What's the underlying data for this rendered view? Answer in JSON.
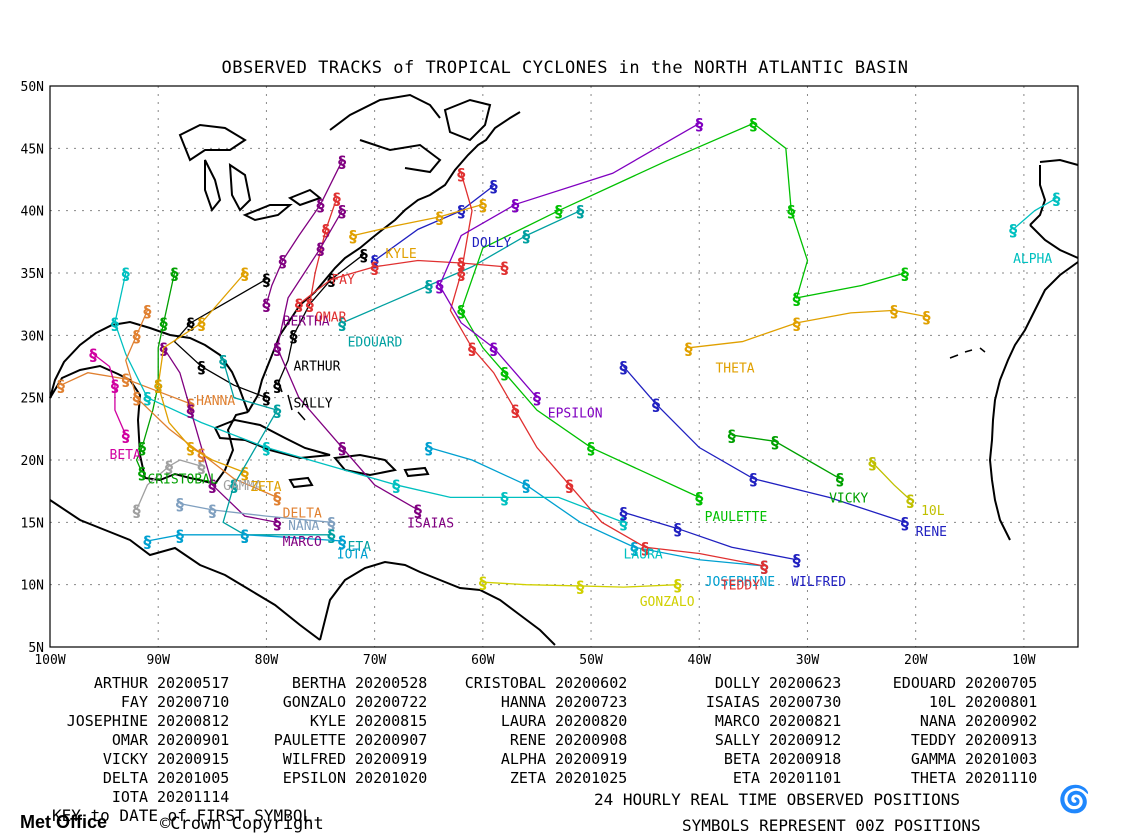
{
  "title": "OBSERVED TRACKS of TROPICAL CYCLONES in the NORTH ATLANTIC BASIN",
  "lat_labels": [
    "50N",
    "45N",
    "40N",
    "35N",
    "30N",
    "25N",
    "20N",
    "15N",
    "10N",
    "5N"
  ],
  "lon_labels": [
    "100W",
    "90W",
    "80W",
    "70W",
    "60W",
    "50W",
    "40W",
    "30W",
    "20W",
    "10W"
  ],
  "map_extent": {
    "lon_min": -100,
    "lon_max": -5,
    "lat_min": 5,
    "lat_max": 50
  },
  "storms": [
    {
      "name": "ARTHUR",
      "date": "20200517",
      "color": "#000000",
      "label": [
        -77.5,
        27.6
      ],
      "track": [
        [
          -79,
          26
        ],
        [
          -78,
          28
        ],
        [
          -77.5,
          30
        ],
        [
          -76,
          32.5
        ],
        [
          -74,
          34.5
        ],
        [
          -71,
          36.5
        ]
      ]
    },
    {
      "name": "BERTHA",
      "date": "20200528",
      "color": "#800080",
      "label": [
        -78.5,
        31.2
      ],
      "track": [
        [
          -80,
          32.5
        ],
        [
          -79.5,
          34
        ],
        [
          -78.5,
          36
        ],
        [
          -77,
          38
        ],
        [
          -75,
          40.5
        ],
        [
          -73,
          44
        ]
      ]
    },
    {
      "name": "CRISTOBAL",
      "date": "20200602",
      "color": "#00a000",
      "label": [
        -91,
        18.5
      ],
      "track": [
        [
          -91.5,
          19
        ],
        [
          -92,
          20
        ],
        [
          -91.5,
          21
        ],
        [
          -90.5,
          24
        ],
        [
          -90,
          26
        ],
        [
          -90,
          29
        ],
        [
          -89.5,
          31
        ],
        [
          -88.5,
          35
        ]
      ]
    },
    {
      "name": "DOLLY",
      "date": "20200623",
      "color": "#2020c0",
      "label": [
        -61,
        37.5
      ],
      "track": [
        [
          -70,
          36
        ],
        [
          -66,
          38.5
        ],
        [
          -62,
          40
        ],
        [
          -59,
          42
        ]
      ]
    },
    {
      "name": "EDOUARD",
      "date": "20200705",
      "color": "#00a0a0",
      "label": [
        -72.5,
        29.5
      ],
      "track": [
        [
          -73,
          31
        ],
        [
          -69,
          32.5
        ],
        [
          -65,
          34
        ],
        [
          -61,
          35.5
        ],
        [
          -56,
          38
        ],
        [
          -51,
          40
        ]
      ]
    },
    {
      "name": "FAY",
      "date": "20200710",
      "color": "#e03030",
      "label": [
        -74,
        34.5
      ],
      "track": [
        [
          -76,
          32.5
        ],
        [
          -75.5,
          35
        ],
        [
          -74.5,
          38.5
        ],
        [
          -73.5,
          41
        ]
      ]
    },
    {
      "name": "GONZALO",
      "date": "20200722",
      "color": "#d0d000",
      "label": [
        -45.5,
        8.7
      ],
      "track": [
        [
          -60,
          10.2
        ],
        [
          -56,
          10
        ],
        [
          -51,
          9.9
        ],
        [
          -47,
          9.8
        ],
        [
          -42,
          10
        ]
      ]
    },
    {
      "name": "HANNA",
      "date": "20200723",
      "color": "#e08030",
      "label": [
        -86.5,
        24.8
      ],
      "track": [
        [
          -87,
          24.5
        ],
        [
          -90,
          25.5
        ],
        [
          -93,
          26.5
        ],
        [
          -96.5,
          27
        ],
        [
          -99,
          26
        ]
      ]
    },
    {
      "name": "ISAIAS",
      "date": "20200730",
      "color": "#800080",
      "label": [
        -67,
        15
      ],
      "track": [
        [
          -66,
          16
        ],
        [
          -70,
          18
        ],
        [
          -73,
          21
        ],
        [
          -77,
          25
        ],
        [
          -79,
          29
        ],
        [
          -78,
          33
        ],
        [
          -75,
          37
        ],
        [
          -73,
          40
        ]
      ]
    },
    {
      "name": "10L",
      "date": "20200801",
      "color": "#c0c000",
      "label": [
        -19.5,
        16
      ],
      "track": [
        [
          -24,
          19.8
        ],
        [
          -22,
          18
        ],
        [
          -20.5,
          16.8
        ]
      ]
    },
    {
      "name": "JOSEPHINE",
      "date": "20200812",
      "color": "#00a0d0",
      "label": [
        -39.5,
        10.3
      ],
      "track": [
        [
          -34,
          11.5
        ],
        [
          -40,
          12
        ],
        [
          -46,
          13
        ],
        [
          -51,
          15
        ],
        [
          -56,
          18
        ],
        [
          -61,
          20
        ],
        [
          -65,
          21
        ]
      ]
    },
    {
      "name": "KYLE",
      "date": "20200815",
      "color": "#e0a000",
      "label": [
        -69,
        36.6
      ],
      "track": [
        [
          -72,
          38
        ],
        [
          -68,
          38.8
        ],
        [
          -64,
          39.5
        ],
        [
          -60,
          40.5
        ]
      ]
    },
    {
      "name": "LAURA",
      "date": "20200820",
      "color": "#00c0c0",
      "label": [
        -47,
        12.5
      ],
      "track": [
        [
          -47,
          15
        ],
        [
          -53,
          17
        ],
        [
          -58,
          17
        ],
        [
          -63,
          17
        ],
        [
          -68,
          18
        ],
        [
          -74,
          19.5
        ],
        [
          -80,
          21
        ],
        [
          -86,
          23
        ],
        [
          -91,
          25
        ],
        [
          -93,
          28.5
        ],
        [
          -94,
          31
        ],
        [
          -93,
          35
        ]
      ]
    },
    {
      "name": "MARCO",
      "date": "20200821",
      "color": "#800080",
      "label": [
        -78.5,
        13.5
      ],
      "track": [
        [
          -79,
          15
        ],
        [
          -82,
          15.5
        ],
        [
          -85,
          18
        ],
        [
          -86,
          21
        ],
        [
          -87,
          24
        ],
        [
          -88,
          27
        ],
        [
          -89.5,
          29
        ]
      ]
    },
    {
      "name": "NANA",
      "date": "20200902",
      "color": "#80a0c0",
      "label": [
        -78,
        14.8
      ],
      "track": [
        [
          -74,
          15
        ],
        [
          -80,
          15.5
        ],
        [
          -85,
          16
        ],
        [
          -88,
          16.5
        ]
      ]
    },
    {
      "name": "OMAR",
      "date": "20200901",
      "color": "#e03030",
      "label": [
        -75.5,
        31.5
      ],
      "track": [
        [
          -77,
          32.5
        ],
        [
          -74,
          34.5
        ],
        [
          -70,
          35.5
        ],
        [
          -66,
          36
        ],
        [
          -62,
          35.8
        ],
        [
          -58,
          35.5
        ]
      ]
    },
    {
      "name": "PAULETTE",
      "date": "20200907",
      "color": "#00c000",
      "label": [
        -39.5,
        15.5
      ],
      "track": [
        [
          -40,
          17
        ],
        [
          -45,
          19
        ],
        [
          -50,
          21
        ],
        [
          -55,
          24
        ],
        [
          -58,
          27
        ],
        [
          -60,
          29
        ],
        [
          -62,
          32
        ],
        [
          -60,
          37
        ],
        [
          -53,
          40
        ],
        [
          -43,
          44
        ],
        [
          -35,
          47
        ],
        [
          -32,
          45
        ],
        [
          -31.5,
          40
        ],
        [
          -30,
          36
        ],
        [
          -31,
          33
        ],
        [
          -25,
          34
        ],
        [
          -21,
          35
        ]
      ]
    },
    {
      "name": "RENE",
      "date": "20200908",
      "color": "#2020c0",
      "label": [
        -20,
        14.3
      ],
      "track": [
        [
          -21,
          15
        ],
        [
          -28,
          17
        ],
        [
          -35,
          18.5
        ],
        [
          -40,
          21
        ],
        [
          -44,
          24.5
        ],
        [
          -47,
          27.5
        ]
      ]
    },
    {
      "name": "SALLY",
      "date": "20200912",
      "color": "#000000",
      "label": [
        -77.5,
        24.6
      ],
      "track": [
        [
          -80,
          25
        ],
        [
          -83,
          26
        ],
        [
          -86,
          27.5
        ],
        [
          -88.5,
          29.5
        ],
        [
          -87,
          31
        ],
        [
          -84,
          32.5
        ],
        [
          -80,
          34.5
        ]
      ]
    },
    {
      "name": "TEDDY",
      "date": "20200913",
      "color": "#e03030",
      "label": [
        -38,
        10
      ],
      "track": [
        [
          -34,
          11.5
        ],
        [
          -40,
          12.5
        ],
        [
          -45,
          13
        ],
        [
          -49,
          15
        ],
        [
          -52,
          18
        ],
        [
          -55,
          21
        ],
        [
          -57,
          24
        ],
        [
          -59,
          27
        ],
        [
          -61,
          29
        ],
        [
          -63,
          32
        ],
        [
          -62,
          35
        ],
        [
          -61,
          40
        ],
        [
          -62,
          43
        ]
      ]
    },
    {
      "name": "VICKY",
      "date": "20200915",
      "color": "#00a000",
      "label": [
        -28,
        17
      ],
      "track": [
        [
          -27,
          18.5
        ],
        [
          -30,
          20
        ],
        [
          -33,
          21.5
        ],
        [
          -37,
          22
        ]
      ]
    },
    {
      "name": "WILFRED",
      "date": "20200919",
      "color": "#2020c0",
      "label": [
        -31.5,
        10.3
      ],
      "track": [
        [
          -31,
          12
        ],
        [
          -37,
          13
        ],
        [
          -42,
          14.5
        ],
        [
          -47,
          15.8
        ]
      ]
    },
    {
      "name": "ALPHA",
      "date": "20200919",
      "color": "#00c0c0",
      "label": [
        -11,
        36.2
      ],
      "track": [
        [
          -7,
          41
        ],
        [
          -9,
          40
        ],
        [
          -11,
          38.5
        ]
      ]
    },
    {
      "name": "BETA",
      "date": "20200918",
      "color": "#d000a0",
      "label": [
        -94.5,
        20.5
      ],
      "track": [
        [
          -93,
          22
        ],
        [
          -94,
          24
        ],
        [
          -94,
          26
        ],
        [
          -94.5,
          27.5
        ],
        [
          -96,
          28.5
        ]
      ]
    },
    {
      "name": "GAMMA",
      "date": "20201003",
      "color": "#a0a0a0",
      "label": [
        -84,
        18
      ],
      "track": [
        [
          -86,
          19.5
        ],
        [
          -88,
          20
        ],
        [
          -89,
          19.5
        ],
        [
          -91,
          18
        ],
        [
          -92,
          16
        ]
      ]
    },
    {
      "name": "DELTA",
      "date": "20201005",
      "color": "#e08030",
      "label": [
        -78.5,
        15.8
      ],
      "track": [
        [
          -79,
          17
        ],
        [
          -83,
          18.5
        ],
        [
          -86,
          20.5
        ],
        [
          -89,
          22.5
        ],
        [
          -92,
          25
        ],
        [
          -93,
          28
        ],
        [
          -92,
          30
        ],
        [
          -91,
          32
        ]
      ]
    },
    {
      "name": "EPSILON",
      "date": "20201020",
      "color": "#8000c0",
      "label": [
        -54,
        23.8
      ],
      "track": [
        [
          -55,
          25
        ],
        [
          -57,
          27
        ],
        [
          -59,
          29
        ],
        [
          -62,
          31
        ],
        [
          -64,
          34
        ],
        [
          -62,
          38
        ],
        [
          -57,
          40.5
        ],
        [
          -48,
          43
        ],
        [
          -40,
          47
        ]
      ]
    },
    {
      "name": "ZETA",
      "date": "20201025",
      "color": "#e0a000",
      "label": [
        -81.5,
        17.9
      ],
      "track": [
        [
          -82,
          19
        ],
        [
          -85,
          20
        ],
        [
          -87,
          21
        ],
        [
          -89,
          23
        ],
        [
          -90,
          26
        ],
        [
          -89.5,
          29
        ],
        [
          -86,
          31
        ],
        [
          -82,
          35
        ]
      ]
    },
    {
      "name": "ETA",
      "date": "20201101",
      "color": "#00a0a0",
      "label": [
        -72.5,
        13.1
      ],
      "track": [
        [
          -74,
          14
        ],
        [
          -78,
          14
        ],
        [
          -82,
          14
        ],
        [
          -84,
          15
        ],
        [
          -83,
          18
        ],
        [
          -81,
          21
        ],
        [
          -79,
          24
        ],
        [
          -83,
          25
        ],
        [
          -84,
          28
        ]
      ]
    },
    {
      "name": "THETA",
      "date": "20201110",
      "color": "#e0a000",
      "label": [
        -38.5,
        27.4
      ],
      "track": [
        [
          -41,
          29
        ],
        [
          -36,
          29.5
        ],
        [
          -31,
          31
        ],
        [
          -26,
          31.8
        ],
        [
          -22,
          32
        ],
        [
          -19,
          31.5
        ]
      ]
    },
    {
      "name": "IOTA",
      "date": "20201114",
      "color": "#00a0d0",
      "label": [
        -73.5,
        12.5
      ],
      "track": [
        [
          -73,
          13.5
        ],
        [
          -78,
          13.8
        ],
        [
          -82,
          14
        ],
        [
          -85,
          14
        ],
        [
          -88,
          14
        ],
        [
          -91,
          13.5
        ]
      ]
    }
  ],
  "footer": {
    "key_note": "KEY to DATE of FIRST SYMBOL",
    "line1": "24 HOURLY REAL TIME OBSERVED POSITIONS",
    "line2": "SYMBOLS REPRESENT 00Z POSITIONS",
    "brand": "Met Office",
    "copyright": "©Crown Copyright"
  },
  "colors": {
    "land": "#ffffff",
    "sea": "#ffffff",
    "grid": "#888888",
    "coast": "#000000"
  }
}
